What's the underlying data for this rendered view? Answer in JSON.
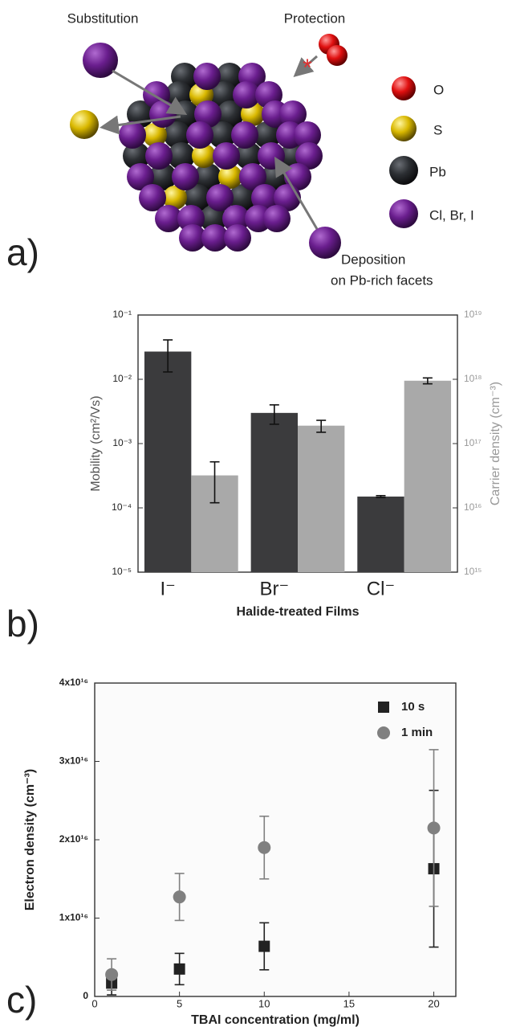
{
  "illustration": {
    "labels": {
      "substitution": "Substitution",
      "protection": "Protection",
      "marker": "*",
      "deposition": "Deposition",
      "facets": "on Pb-rich facets"
    },
    "legend": [
      "O",
      "S",
      "Pb",
      "Cl, Br, I"
    ]
  },
  "panel_labels": [
    "a)",
    "b)",
    "c)"
  ],
  "chart_data": [
    {
      "type": "bar",
      "categories": [
        "I⁻",
        "Br⁻",
        "Cl⁻"
      ],
      "xlabel": "Halide-treated Films",
      "ylabel": "Mobility (cm²/Vs)",
      "y2label": "Carrier density (cm⁻³)",
      "ylog": true,
      "ylim": [
        1e-05,
        0.1
      ],
      "yticks": [
        {
          "value": 1e-05,
          "label": "10⁻⁵"
        },
        {
          "value": 0.0001,
          "label": "10⁻⁴"
        },
        {
          "value": 0.001,
          "label": "10⁻³"
        },
        {
          "value": 0.01,
          "label": "10⁻²"
        },
        {
          "value": 0.1,
          "label": "10⁻¹"
        }
      ],
      "y2lim": [
        1000000000000000.0,
        1e+19
      ],
      "y2ticks": [
        {
          "value": 1000000000000000.0,
          "label": "10¹⁵"
        },
        {
          "value": 1e+16,
          "label": "10¹⁶"
        },
        {
          "value": 1e+17,
          "label": "10¹⁷"
        },
        {
          "value": 1e+18,
          "label": "10¹⁸"
        },
        {
          "value": 1e+19,
          "label": "10¹⁹"
        }
      ],
      "series": [
        {
          "color": "#3b3b3d",
          "values": [
            0.027,
            0.003,
            0.00015
          ],
          "errors": [
            0.014,
            0.001,
            5e-06
          ]
        },
        {
          "color": "#a9a9a9",
          "axis": "y2",
          "values": [
            3.2e+16,
            1.9e+17,
            9.5e+17
          ],
          "errors": [
            2e+16,
            4e+16,
            1e+17
          ]
        }
      ]
    },
    {
      "type": "scatter",
      "xlabel": "TBAI concentration (mg/ml)",
      "ylabel": "Electron density (cm⁻³)",
      "xlim": [
        0,
        21.3
      ],
      "xticks": [
        0,
        5,
        10,
        15,
        20
      ],
      "ylim": [
        0,
        4e+16
      ],
      "yticks": [
        0,
        {
          "value": 1e+16,
          "label": "1x10¹⁶"
        },
        {
          "value": 2e+16,
          "label": "2x10¹⁶"
        },
        {
          "value": 3e+16,
          "label": "3x10¹⁶"
        },
        {
          "value": 4e+16,
          "label": "4x10¹⁶"
        }
      ],
      "legend": "upper right",
      "series": [
        {
          "name": "10 s",
          "color": "#222222",
          "marker": "square",
          "x": [
            1,
            5,
            10,
            20
          ],
          "values": [
            1700000000000000.0,
            3500000000000000.0,
            6400000000000000.0,
            1.63e+16
          ],
          "errors": [
            1500000000000000.0,
            2000000000000000.0,
            3000000000000000.0,
            1e+16
          ]
        },
        {
          "name": "1 min",
          "color": "#808080",
          "marker": "circle",
          "x": [
            1,
            5,
            10,
            20
          ],
          "values": [
            2800000000000000.0,
            1.27e+16,
            1.9e+16,
            2.15e+16
          ],
          "errors": [
            2000000000000000.0,
            3000000000000000.0,
            4000000000000000.0,
            1e+16
          ]
        }
      ]
    }
  ]
}
